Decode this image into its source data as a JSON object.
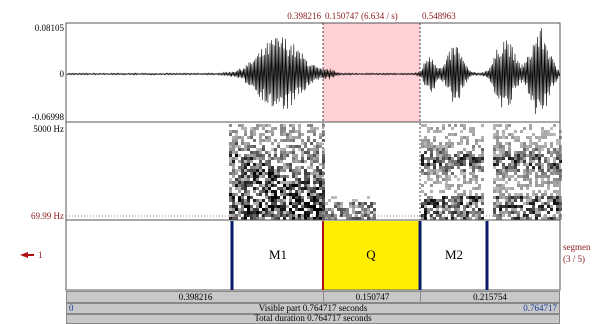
{
  "selection": {
    "start": "0.398216",
    "duration": "0.150747 (6.634 / s)",
    "end": "0.548963"
  },
  "waveform": {
    "max": "0.08105",
    "zero": "0",
    "min": "-0.06998"
  },
  "spectrogram": {
    "top": "5000 Hz",
    "bottom": "69.99 Hz"
  },
  "tier": {
    "number": "1",
    "name": "segmen",
    "count": "(3 / 5)",
    "intervals": [
      "M1",
      "Q",
      "M2"
    ]
  },
  "footer": {
    "durations": [
      "0.398216",
      "0.150747",
      "0.215754"
    ],
    "visible_start": "0",
    "visible": "Visible part 0.764717 seconds",
    "visible_end": "0.764717",
    "total": "Total duration 0.764717 seconds"
  }
}
